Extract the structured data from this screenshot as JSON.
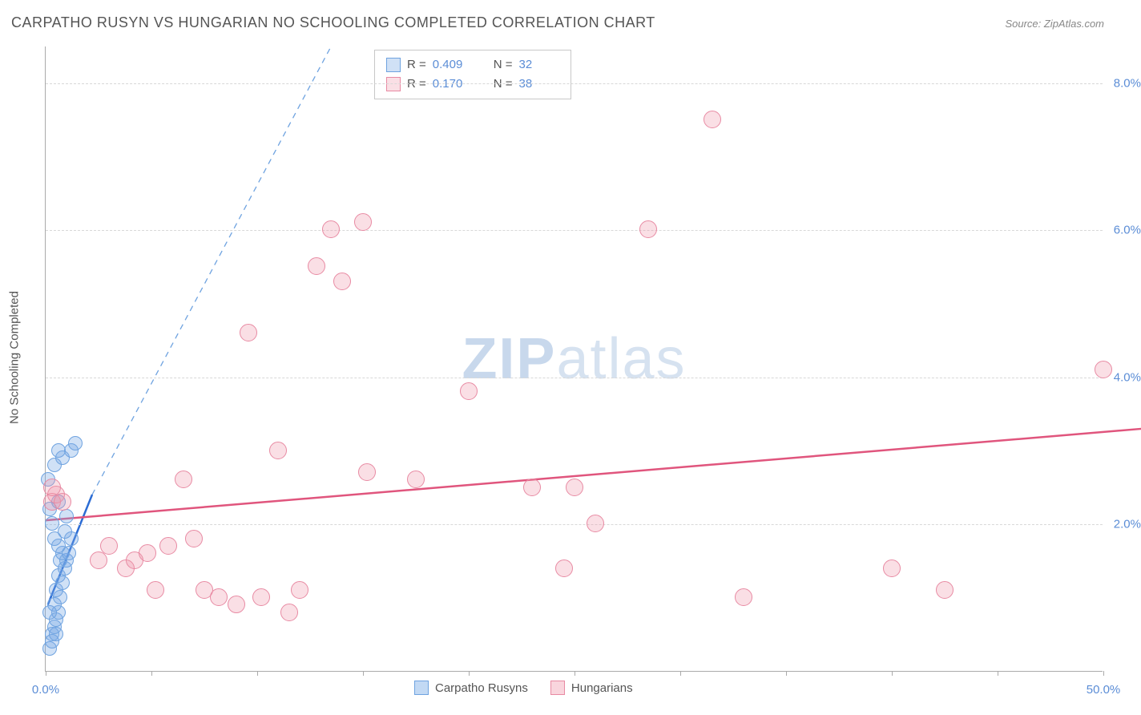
{
  "title": "CARPATHO RUSYN VS HUNGARIAN NO SCHOOLING COMPLETED CORRELATION CHART",
  "source": "Source: ZipAtlas.com",
  "yaxis_label": "No Schooling Completed",
  "watermark_a": "ZIP",
  "watermark_b": "atlas",
  "chart": {
    "type": "scatter",
    "xlim": [
      0,
      50
    ],
    "ylim": [
      0,
      8.5
    ],
    "y_gridlines": [
      2,
      4,
      6,
      8
    ],
    "y_tick_labels": [
      "2.0%",
      "4.0%",
      "6.0%",
      "8.0%"
    ],
    "x_ticks": [
      0,
      5,
      10,
      15,
      20,
      25,
      30,
      35,
      40,
      45,
      50
    ],
    "x_tick_labels_shown": {
      "0": "0.0%",
      "50": "50.0%"
    },
    "background_color": "#ffffff",
    "grid_color": "#d8d8d8",
    "axis_color": "#aaaaaa",
    "tick_label_color": "#5b8dd6",
    "series": [
      {
        "name": "Carpatho Rusyns",
        "fill": "rgba(120,170,230,0.35)",
        "stroke": "#6fa3e0",
        "marker_radius": 9,
        "points": [
          [
            0.2,
            0.3
          ],
          [
            0.3,
            0.5
          ],
          [
            0.4,
            0.6
          ],
          [
            0.5,
            0.7
          ],
          [
            0.6,
            0.8
          ],
          [
            0.4,
            0.9
          ],
          [
            0.7,
            1.0
          ],
          [
            0.5,
            1.1
          ],
          [
            0.8,
            1.2
          ],
          [
            0.6,
            1.3
          ],
          [
            0.9,
            1.4
          ],
          [
            0.7,
            1.5
          ],
          [
            1.0,
            1.5
          ],
          [
            0.8,
            1.6
          ],
          [
            1.1,
            1.6
          ],
          [
            0.6,
            1.7
          ],
          [
            1.2,
            1.8
          ],
          [
            0.4,
            1.8
          ],
          [
            0.9,
            1.9
          ],
          [
            0.3,
            2.0
          ],
          [
            1.0,
            2.1
          ],
          [
            0.2,
            2.2
          ],
          [
            0.6,
            2.3
          ],
          [
            0.1,
            2.6
          ],
          [
            0.4,
            2.8
          ],
          [
            0.8,
            2.9
          ],
          [
            1.2,
            3.0
          ],
          [
            0.6,
            3.0
          ],
          [
            1.4,
            3.1
          ],
          [
            0.3,
            0.4
          ],
          [
            0.5,
            0.5
          ],
          [
            0.2,
            0.8
          ]
        ],
        "trend_solid": {
          "x1": 0.1,
          "y1": 0.9,
          "x2": 2.2,
          "y2": 2.4,
          "color": "#2b6cd4",
          "width": 2.5
        },
        "trend_dashed": {
          "x1": 2.2,
          "y1": 2.4,
          "x2": 13.5,
          "y2": 8.5,
          "color": "#6fa3e0",
          "width": 1.3,
          "dash": "7 6"
        }
      },
      {
        "name": "Hungarians",
        "fill": "rgba(240,150,170,0.30)",
        "stroke": "#e88aa3",
        "marker_radius": 11,
        "points": [
          [
            0.3,
            2.3
          ],
          [
            0.5,
            2.4
          ],
          [
            0.3,
            2.5
          ],
          [
            2.5,
            1.5
          ],
          [
            3.0,
            1.7
          ],
          [
            3.8,
            1.4
          ],
          [
            4.2,
            1.5
          ],
          [
            4.8,
            1.6
          ],
          [
            5.2,
            1.1
          ],
          [
            5.8,
            1.7
          ],
          [
            6.5,
            2.6
          ],
          [
            7.0,
            1.8
          ],
          [
            7.5,
            1.1
          ],
          [
            8.2,
            1.0
          ],
          [
            9.0,
            0.9
          ],
          [
            9.6,
            4.6
          ],
          [
            10.2,
            1.0
          ],
          [
            11.0,
            3.0
          ],
          [
            11.5,
            0.8
          ],
          [
            12.0,
            1.1
          ],
          [
            12.8,
            5.5
          ],
          [
            13.5,
            6.0
          ],
          [
            14.0,
            5.3
          ],
          [
            15.0,
            6.1
          ],
          [
            15.2,
            2.7
          ],
          [
            17.5,
            2.6
          ],
          [
            20.0,
            3.8
          ],
          [
            23.0,
            2.5
          ],
          [
            24.5,
            1.4
          ],
          [
            25.0,
            2.5
          ],
          [
            26.0,
            2.0
          ],
          [
            28.5,
            6.0
          ],
          [
            31.5,
            7.5
          ],
          [
            33.0,
            1.0
          ],
          [
            40.0,
            1.4
          ],
          [
            42.5,
            1.1
          ],
          [
            50.0,
            4.1
          ],
          [
            0.8,
            2.3
          ]
        ],
        "trend_solid": {
          "x1": 0,
          "y1": 2.05,
          "x2": 52,
          "y2": 3.3,
          "color": "#e0557d",
          "width": 2.5
        }
      }
    ]
  },
  "stats": {
    "rows": [
      {
        "swatch_fill": "rgba(120,170,230,0.35)",
        "swatch_stroke": "#6fa3e0",
        "r_label": "R =",
        "r_val": "0.409",
        "n_label": "N =",
        "n_val": "32"
      },
      {
        "swatch_fill": "rgba(240,150,170,0.30)",
        "swatch_stroke": "#e88aa3",
        "r_label": "R =",
        "r_val": "0.170",
        "n_label": "N =",
        "n_val": "38"
      }
    ]
  },
  "legend": {
    "items": [
      {
        "swatch_fill": "rgba(120,170,230,0.45)",
        "swatch_stroke": "#6fa3e0",
        "label": "Carpatho Rusyns"
      },
      {
        "swatch_fill": "rgba(240,150,170,0.40)",
        "swatch_stroke": "#e88aa3",
        "label": "Hungarians"
      }
    ]
  }
}
